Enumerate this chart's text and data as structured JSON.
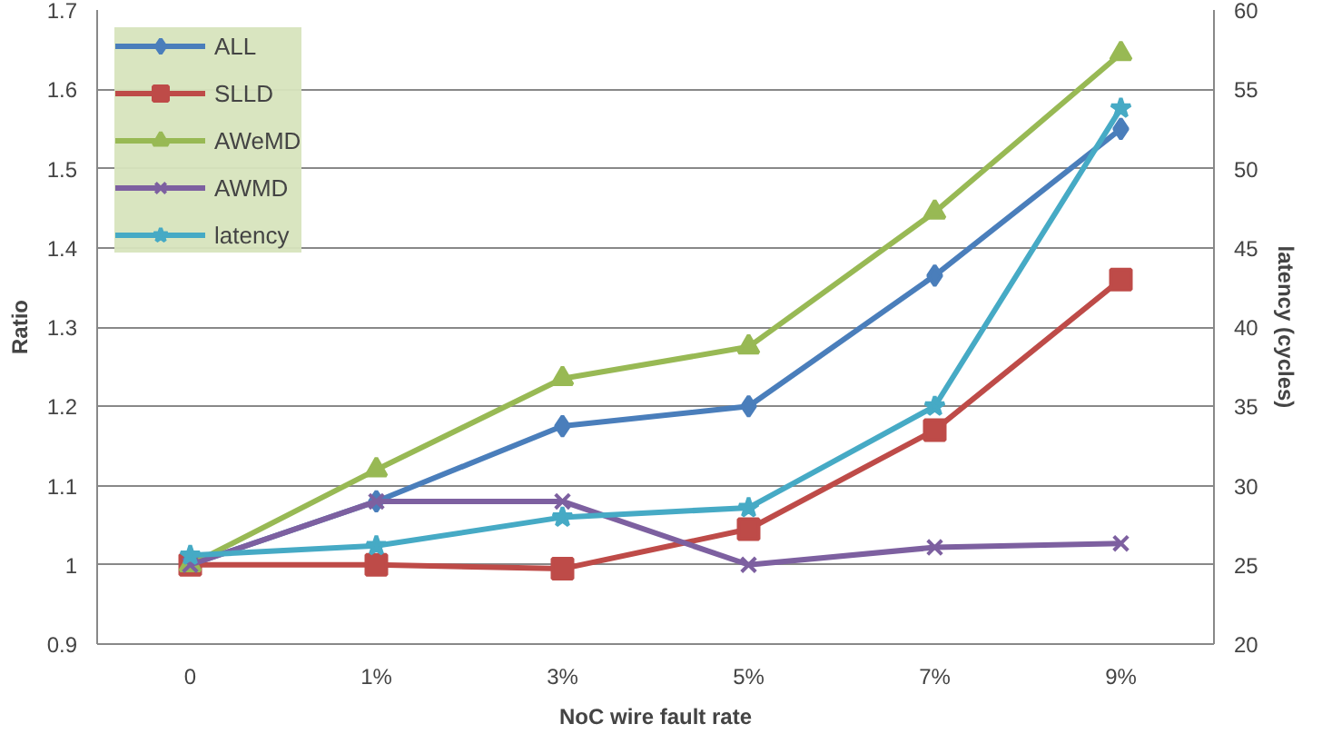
{
  "chart_data": {
    "type": "line",
    "xlabel": "NoC wire fault rate",
    "ylabel": "Ratio",
    "y2label": "latency (cycles)",
    "categories": [
      "0",
      "1%",
      "3%",
      "5%",
      "7%",
      "9%"
    ],
    "ylim": [
      0.9,
      1.7
    ],
    "yticks": [
      0.9,
      1,
      1.1,
      1.2,
      1.3,
      1.4,
      1.5,
      1.6,
      1.7
    ],
    "y2lim": [
      20,
      60
    ],
    "y2ticks": [
      20,
      25,
      30,
      35,
      40,
      45,
      50,
      55,
      60
    ],
    "grid": "y",
    "legend": "top left",
    "line_style": "solid",
    "series": [
      {
        "name": "ALL",
        "color": "#4a7ebb",
        "marker": "diamond",
        "values": [
          1.0,
          1.08,
          1.175,
          1.2,
          1.365,
          1.55
        ]
      },
      {
        "name": "SLLD",
        "color": "#be4b48",
        "marker": "square",
        "values": [
          1.0,
          1.0,
          0.995,
          1.045,
          1.17,
          1.36
        ]
      },
      {
        "name": "AWeMD",
        "color": "#98b954",
        "marker": "triangle",
        "values": [
          1.0,
          1.12,
          1.235,
          1.275,
          1.445,
          1.645
        ]
      },
      {
        "name": "AWMD",
        "color": "#7d60a0",
        "marker": "cross",
        "values": [
          1.0,
          1.08,
          1.08,
          1.0,
          1.022,
          1.027
        ]
      },
      {
        "name": "latency",
        "color": "#46aac5",
        "marker": "star",
        "axis": "y2",
        "values": [
          25.6,
          26.2,
          28.0,
          28.6,
          35.0,
          53.8
        ]
      }
    ]
  }
}
